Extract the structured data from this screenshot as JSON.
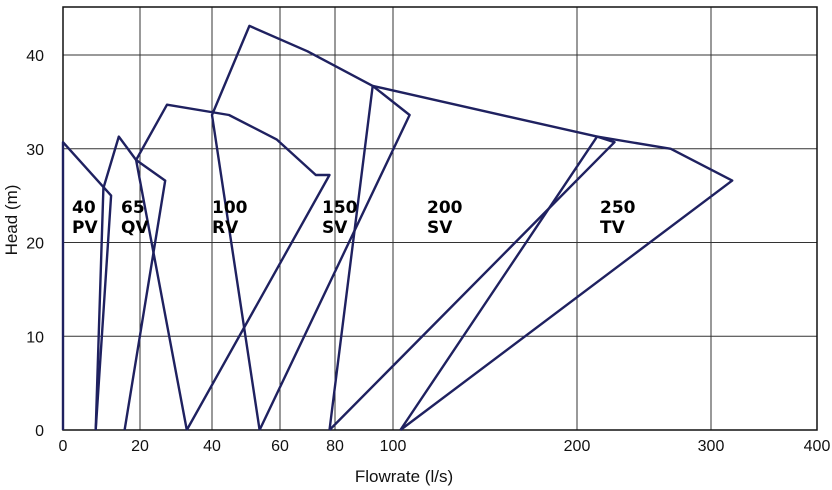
{
  "chart_data": {
    "type": "line",
    "xlabel": "Flowrate (l/s)",
    "ylabel": "Head (m)",
    "ylim": [
      0,
      45
    ],
    "grid": true,
    "x_ticks": [
      "0",
      "20",
      "40",
      "60",
      "80",
      "100",
      "200",
      "300",
      "400"
    ],
    "y_ticks": [
      "0",
      "10",
      "20",
      "30",
      "40"
    ],
    "colors": {
      "curve": "#1f2160",
      "grid": "#333333"
    },
    "x_scale_note_values": [
      0,
      20,
      40,
      60,
      80,
      100,
      200,
      300,
      400
    ],
    "series": [
      {
        "name": "40 PV",
        "label_lines": [
          "40",
          "PV"
        ],
        "points": [
          [
            0,
            0
          ],
          [
            0,
            30.7
          ],
          [
            12.5,
            25.0
          ],
          [
            8.5,
            0
          ]
        ]
      },
      {
        "name": "65 QV",
        "label_lines": [
          "65",
          "QV"
        ],
        "points": [
          [
            8.5,
            0
          ],
          [
            10.5,
            25.8
          ],
          [
            14.5,
            31.3
          ],
          [
            19,
            28.8
          ],
          [
            27,
            26.6
          ],
          [
            16,
            0
          ]
        ]
      },
      {
        "name": "100 RV",
        "label_lines": [
          "100",
          "RV"
        ],
        "points": [
          [
            33,
            0
          ],
          [
            19,
            28.8
          ],
          [
            27.5,
            34.7
          ],
          [
            45,
            33.6
          ],
          [
            59,
            31.0
          ],
          [
            73,
            27.2
          ],
          [
            78,
            27.2
          ],
          [
            33,
            0
          ]
        ]
      },
      {
        "name": "150 SV",
        "label_lines": [
          "150",
          "SV"
        ],
        "points": [
          [
            54,
            0
          ],
          [
            40,
            33.6
          ],
          [
            51,
            43.1
          ],
          [
            70,
            40.4
          ],
          [
            93,
            36.7
          ],
          [
            109,
            33.6
          ],
          [
            54,
            0
          ]
        ]
      },
      {
        "name": "200 SV",
        "label_lines": [
          "200",
          "SV"
        ],
        "points": [
          [
            78,
            0
          ],
          [
            93,
            36.7
          ],
          [
            150,
            34.0
          ],
          [
            215,
            31.3
          ],
          [
            228,
            30.7
          ],
          [
            78,
            0
          ]
        ]
      },
      {
        "name": "250 TV",
        "label_lines": [
          "250",
          "TV"
        ],
        "points": [
          [
            104,
            0
          ],
          [
            215,
            31.3
          ],
          [
            270,
            30.0
          ],
          [
            320,
            26.6
          ],
          [
            104,
            0
          ]
        ]
      }
    ]
  }
}
